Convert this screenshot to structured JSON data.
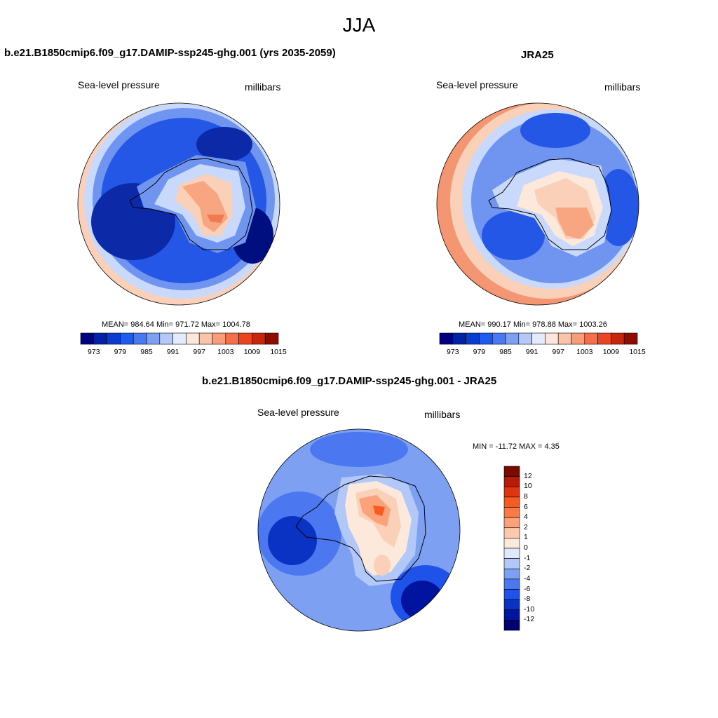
{
  "figure": {
    "title": "JJA"
  },
  "panels": [
    {
      "title": "b.e21.B1850cmip6.f09_g17.DAMIP-ssp245-ghg.001 (yrs 2035-2059)",
      "left_label": "Sea-level pressure",
      "right_label": "millibars",
      "stats": "MEAN= 984.64  Min= 971.72  Max= 1004.78",
      "colorbar": {
        "ticks": [
          "973",
          "979",
          "985",
          "991",
          "997",
          "1003",
          "1009",
          "1015"
        ],
        "colors": [
          "#000080",
          "#0022a8",
          "#0a3ccf",
          "#1f5bf0",
          "#4679f2",
          "#7ea0f2",
          "#b4c9f7",
          "#e2ebfd",
          "#fde7db",
          "#fbc3a8",
          "#f89c7a",
          "#f46f4a",
          "#ea4520",
          "#c8260c",
          "#8e0b00"
        ]
      }
    },
    {
      "title": "JRA25",
      "left_label": "Sea-level pressure",
      "right_label": "millibars",
      "stats": "MEAN= 990.17  Min= 978.88  Max= 1003.26",
      "colorbar": {
        "ticks": [
          "973",
          "979",
          "985",
          "991",
          "997",
          "1003",
          "1009",
          "1015"
        ],
        "colors": [
          "#000080",
          "#0022a8",
          "#0a3ccf",
          "#1f5bf0",
          "#4679f2",
          "#7ea0f2",
          "#b4c9f7",
          "#e2ebfd",
          "#fde7db",
          "#fbc3a8",
          "#f89c7a",
          "#f46f4a",
          "#ea4520",
          "#c8260c",
          "#8e0b00"
        ]
      }
    },
    {
      "title": "b.e21.B1850cmip6.f09_g17.DAMIP-ssp245-ghg.001 - JRA25",
      "left_label": "Sea-level pressure",
      "right_label": "millibars",
      "stats": "MIN = -11.72 MAX =   4.35",
      "colorbar": {
        "ticks": [
          "12",
          "10",
          "8",
          "6",
          "4",
          "2",
          "1",
          "0",
          "-1",
          "-2",
          "-4",
          "-6",
          "-8",
          "-10",
          "-12"
        ],
        "colors": [
          "#7a0a00",
          "#b81a06",
          "#e0360f",
          "#f95a22",
          "#fb7a45",
          "#fba27a",
          "#fdc9ad",
          "#fde8dc",
          "#dfe9fd",
          "#b2c8f8",
          "#7da0f3",
          "#4b77f0",
          "#1e52e8",
          "#0a33c4",
          "#0014a0",
          "#000070"
        ]
      }
    }
  ],
  "colors": {
    "deep": "#0c2aa8",
    "mid": "#2457e6",
    "light": "#6f95f0",
    "pale": "#c9d9fb",
    "warm1": "#fbd0b8",
    "warm2": "#f8a581",
    "warm3": "#f27a52",
    "coast": "#000000"
  }
}
